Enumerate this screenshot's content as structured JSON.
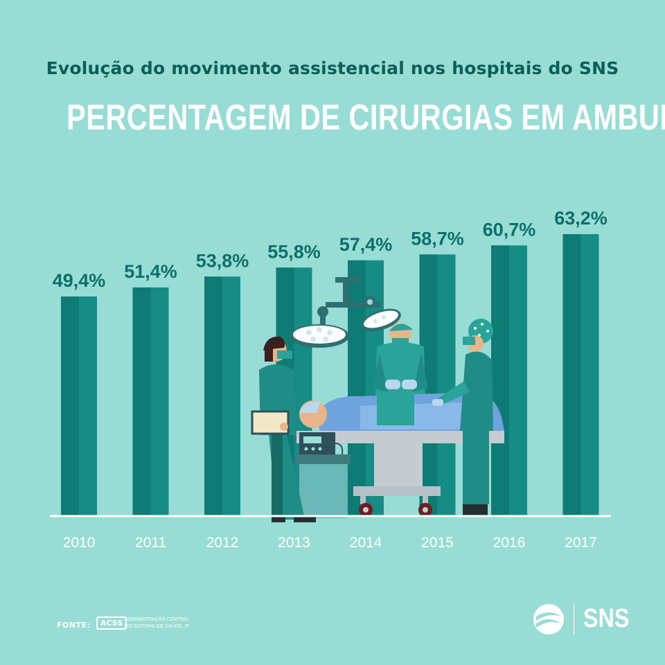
{
  "header": {
    "subtitle": "Evolução do movimento assistencial nos hospitais do SNS",
    "title": "PERCENTAGEM DE CIRURGIAS EM AMBULATÓRIO"
  },
  "chart_data": {
    "type": "bar",
    "categories": [
      "2010",
      "2011",
      "2012",
      "2013",
      "2014",
      "2015",
      "2016",
      "2017"
    ],
    "values": [
      49.4,
      51.4,
      53.8,
      55.8,
      57.4,
      58.7,
      60.7,
      63.2
    ],
    "value_labels": [
      "49,4%",
      "51,4%",
      "53,8%",
      "55,8%",
      "57,4%",
      "58,7%",
      "60,7%",
      "63,2%"
    ],
    "unit": "%",
    "title": "PERCENTAGEM DE CIRURGIAS EM AMBULATÓRIO",
    "xlabel": "",
    "ylabel": "",
    "grid": false,
    "legend": "none",
    "bar_color": "#168c84",
    "bar_shade_color": "#0e7c75"
  },
  "footer": {
    "source_label": "FONTE:",
    "acss_abbr": "ACSS",
    "acss_name": "Administração Central do Sistema de Saúde, IP",
    "brand": "SNS"
  },
  "colors": {
    "background": "#97ddd6",
    "dark_teal": "#0e5e58",
    "white": "#ffffff"
  }
}
